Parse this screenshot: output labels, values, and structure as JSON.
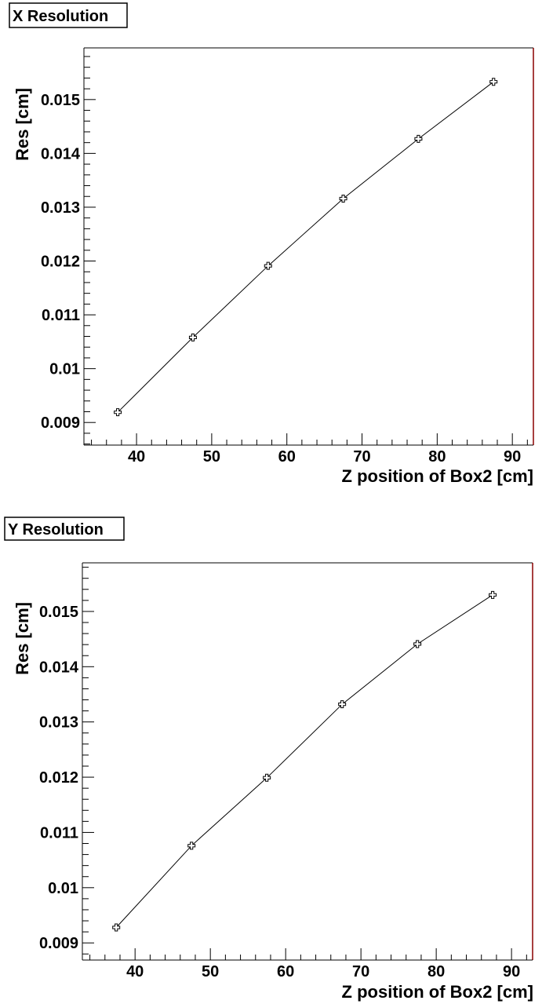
{
  "chart_data": [
    {
      "type": "line",
      "title": "X Resolution",
      "xlabel": "Z position of Box2 [cm]",
      "ylabel": "Res [cm]",
      "xlim": [
        33,
        92.8
      ],
      "ylim": [
        0.00858,
        0.01596
      ],
      "xticks": [
        40,
        50,
        60,
        70,
        80,
        90
      ],
      "xtick_labels": [
        "40",
        "50",
        "60",
        "70",
        "80",
        "90"
      ],
      "yticks": [
        0.009,
        0.01,
        0.011,
        0.012,
        0.013,
        0.014,
        0.015
      ],
      "ytick_labels": [
        "0.009",
        "0.01",
        "0.011",
        "0.012",
        "0.013",
        "0.014",
        "0.015"
      ],
      "grid": false,
      "marker": "open-cross",
      "series": [
        {
          "x": [
            37.5,
            47.5,
            57.5,
            67.5,
            77.5,
            87.5
          ],
          "y": [
            0.00919,
            0.01058,
            0.01191,
            0.01316,
            0.01427,
            0.01533
          ]
        }
      ]
    },
    {
      "type": "line",
      "title": "Y Resolution",
      "xlabel": "Z position of Box2 [cm]",
      "ylabel": "Res [cm]",
      "xlim": [
        33,
        92.8
      ],
      "ylim": [
        0.00869,
        0.01588
      ],
      "xticks": [
        40,
        50,
        60,
        70,
        80,
        90
      ],
      "xtick_labels": [
        "40",
        "50",
        "60",
        "70",
        "80",
        "90"
      ],
      "yticks": [
        0.009,
        0.01,
        0.011,
        0.012,
        0.013,
        0.014,
        0.015
      ],
      "ytick_labels": [
        "0.009",
        "0.01",
        "0.011",
        "0.012",
        "0.013",
        "0.014",
        "0.015"
      ],
      "grid": false,
      "marker": "open-cross",
      "series": [
        {
          "x": [
            37.5,
            47.5,
            57.5,
            67.5,
            77.5,
            87.5
          ],
          "y": [
            0.00928,
            0.01076,
            0.01199,
            0.01332,
            0.01441,
            0.0153
          ]
        }
      ]
    }
  ],
  "colors": {
    "axis": "#000000",
    "frame_right": "#8b0000",
    "line": "#000000",
    "background": "#ffffff"
  }
}
